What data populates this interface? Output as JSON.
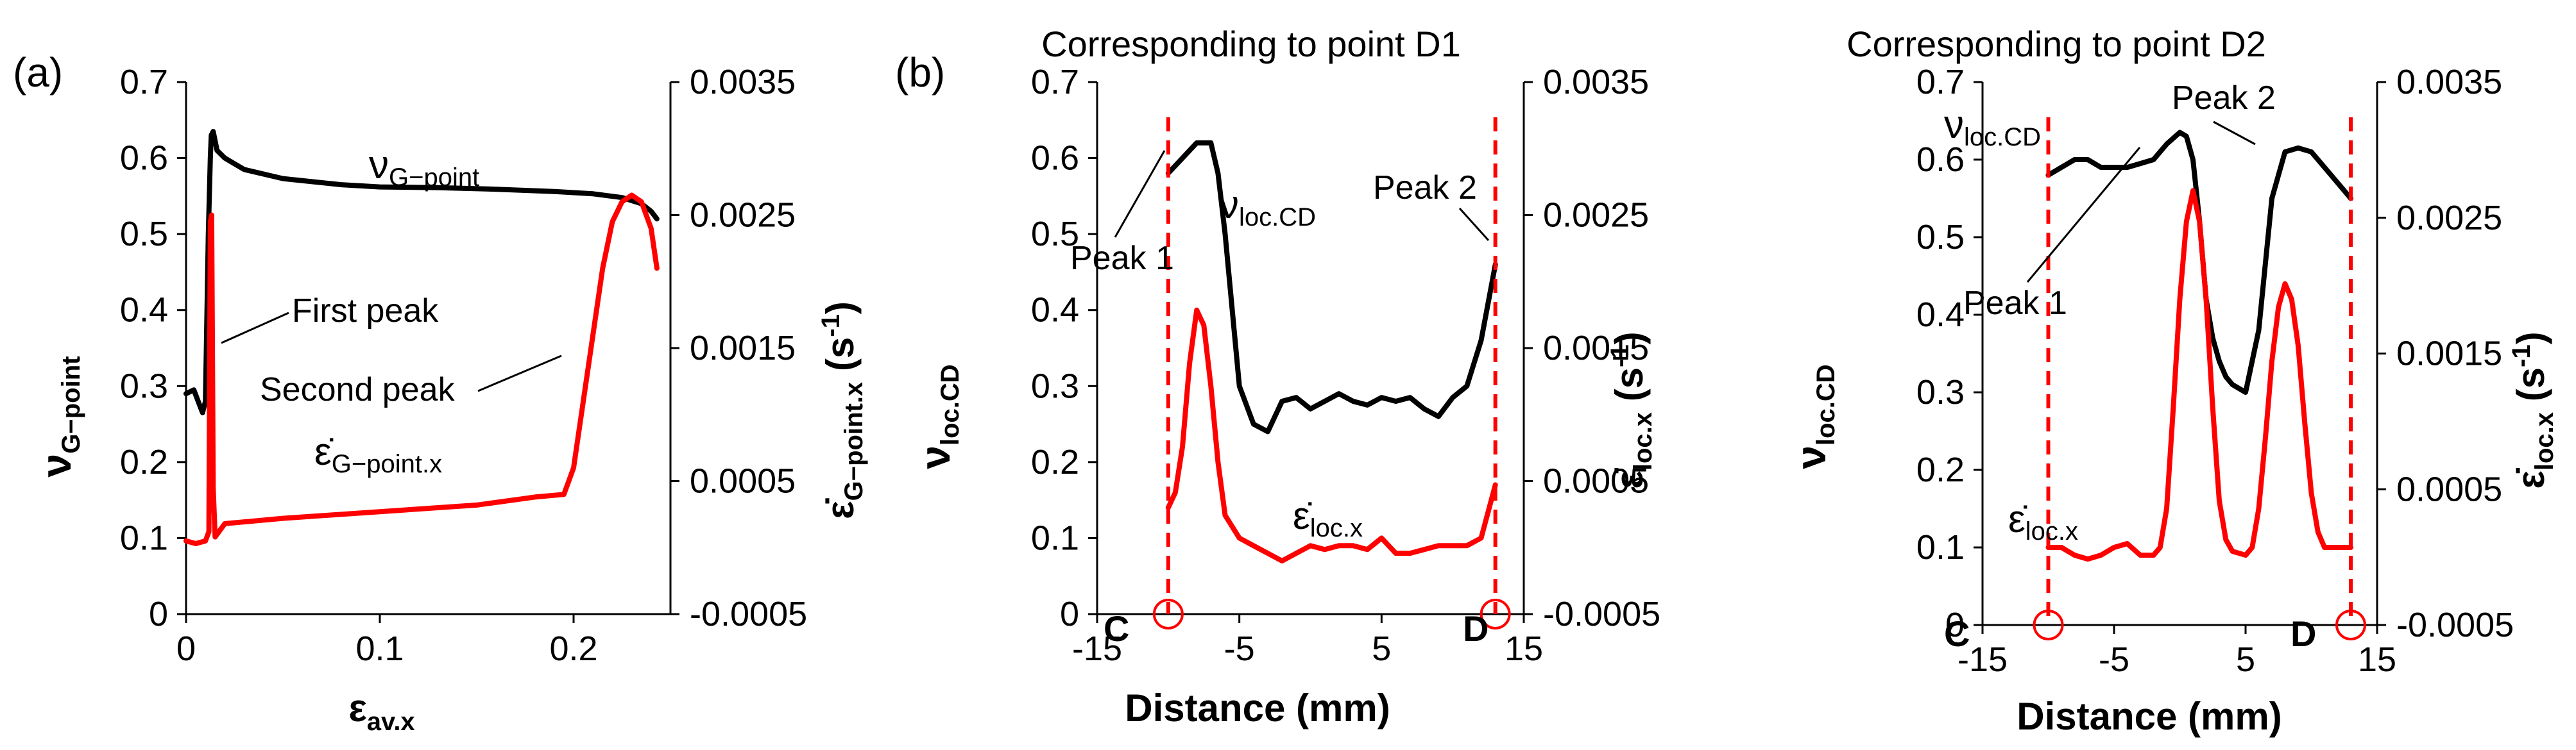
{
  "figure_labels": {
    "a": "(a)",
    "b": "(b)"
  },
  "subscripts": {
    "g_point": "G−point",
    "g_point_x": "G−point.x",
    "av_x": "av.x",
    "loc_cd": "loc.CD",
    "loc_x": "loc.x",
    "minus1": "-1"
  },
  "symbols": {
    "nu": "ν",
    "eps_dot": "ε̇",
    "eps": "ε",
    "unit_open": " (s",
    "unit_close": ")"
  },
  "chart_data": [
    {
      "type": "line",
      "id": "a",
      "title": "",
      "xlabel": "ε_av.x",
      "ylabel": "ν_G−point",
      "y2label": "ε̇_G−point.x (s-1)",
      "xlim": [
        0,
        0.25
      ],
      "ylim": [
        0,
        0.7
      ],
      "y2lim": [
        -0.0005,
        0.0035
      ],
      "xticks": [
        "0",
        "0.1",
        "0.2"
      ],
      "xtick_values": [
        0,
        0.1,
        0.2
      ],
      "yticks": [
        "0",
        "0.1",
        "0.2",
        "0.3",
        "0.4",
        "0.5",
        "0.6",
        "0.7"
      ],
      "y2ticks": [
        "-0.0005",
        "0.0005",
        "0.0015",
        "0.0025",
        "0.0035"
      ],
      "series": [
        {
          "name": "ν_G−point",
          "axis": "left",
          "color": "#000000",
          "x": [
            0,
            0.004,
            0.007,
            0.0085,
            0.01,
            0.0115,
            0.0125,
            0.013,
            0.014,
            0.016,
            0.02,
            0.03,
            0.05,
            0.08,
            0.1,
            0.13,
            0.16,
            0.19,
            0.21,
            0.225,
            0.235,
            0.24,
            0.243
          ],
          "y": [
            0.29,
            0.295,
            0.275,
            0.265,
            0.28,
            0.5,
            0.6,
            0.63,
            0.635,
            0.61,
            0.6,
            0.585,
            0.573,
            0.565,
            0.562,
            0.561,
            0.559,
            0.556,
            0.553,
            0.548,
            0.54,
            0.53,
            0.52
          ]
        },
        {
          "name": "ε̇_G−point.x",
          "axis": "right",
          "color": "#ff0000",
          "x": [
            0,
            0.005,
            0.01,
            0.0118,
            0.0125,
            0.0132,
            0.014,
            0.015,
            0.02,
            0.05,
            0.1,
            0.15,
            0.18,
            0.195,
            0.2,
            0.205,
            0.21,
            0.215,
            0.22,
            0.225,
            0.23,
            0.235,
            0.24,
            0.243
          ],
          "y": [
            5e-05,
            3e-05,
            5e-05,
            0.00012,
            0.00245,
            0.0025,
            0.00045,
            8e-05,
            0.00018,
            0.00022,
            0.00027,
            0.00032,
            0.00038,
            0.0004,
            0.0006,
            0.0011,
            0.0016,
            0.0021,
            0.00245,
            0.0026,
            0.00265,
            0.0026,
            0.0024,
            0.0021
          ]
        }
      ],
      "annotations": [
        "First peak",
        "Second peak"
      ]
    },
    {
      "type": "line",
      "id": "b1",
      "title": "Corresponding to point D1",
      "xlabel": "Distance (mm)",
      "ylabel": "ν_loc.CD",
      "y2label": "ε̇_loc.x (s-1)",
      "xlim": [
        -15,
        15
      ],
      "ylim": [
        0,
        0.7
      ],
      "y2lim": [
        -0.0005,
        0.0035
      ],
      "xticks": [
        "-15",
        "-5",
        "5",
        "15"
      ],
      "xtick_values": [
        -15,
        -5,
        5,
        15
      ],
      "yticks": [
        "0",
        "0.1",
        "0.2",
        "0.3",
        "0.4",
        "0.5",
        "0.6",
        "0.7"
      ],
      "y2ticks": [
        "-0.0005",
        "0.0005",
        "0.0015",
        "0.0025",
        "0.0035"
      ],
      "series": [
        {
          "name": "ν_loc.CD",
          "axis": "left",
          "color": "#000000",
          "x": [
            -10,
            -9,
            -8,
            -7,
            -6.5,
            -6,
            -5.5,
            -5,
            -4,
            -3,
            -2,
            -1,
            0,
            1,
            2,
            3,
            4,
            5,
            6,
            7,
            8,
            9,
            10,
            11,
            12,
            13
          ],
          "y": [
            0.58,
            0.6,
            0.62,
            0.62,
            0.58,
            0.5,
            0.4,
            0.3,
            0.25,
            0.24,
            0.28,
            0.285,
            0.27,
            0.28,
            0.29,
            0.28,
            0.275,
            0.285,
            0.28,
            0.285,
            0.27,
            0.26,
            0.285,
            0.3,
            0.36,
            0.46
          ]
        },
        {
          "name": "ε̇_loc.x",
          "axis": "right",
          "color": "#ff0000",
          "x": [
            -10,
            -9.5,
            -9,
            -8.5,
            -8,
            -7.5,
            -7,
            -6.5,
            -6,
            -5,
            -4,
            -3,
            -2,
            -1,
            0,
            1,
            2,
            3,
            4,
            5,
            6,
            7,
            8,
            9,
            10,
            11,
            12,
            13
          ],
          "y": [
            0.14,
            0.16,
            0.22,
            0.33,
            0.4,
            0.38,
            0.3,
            0.2,
            0.13,
            0.1,
            0.09,
            0.08,
            0.07,
            0.08,
            0.09,
            0.085,
            0.09,
            0.09,
            0.085,
            0.1,
            0.08,
            0.08,
            0.085,
            0.09,
            0.09,
            0.09,
            0.1,
            0.17
          ],
          "y_in_left_units": true
        }
      ],
      "annotations": [
        "Peak 1",
        "Peak 2",
        "C",
        "D"
      ],
      "markers": {
        "C": -10,
        "D": 13
      }
    },
    {
      "type": "line",
      "id": "b2",
      "title": "Corresponding to point D2",
      "xlabel": "Distance (mm)",
      "ylabel": "ν_loc.CD",
      "y2label": "ε̇_loc.x (s-1)",
      "xlim": [
        -15,
        15
      ],
      "ylim": [
        0,
        0.7
      ],
      "y2lim": [
        -0.0005,
        0.0035
      ],
      "xticks": [
        "-15",
        "-5",
        "5",
        "15"
      ],
      "xtick_values": [
        -15,
        -5,
        5,
        15
      ],
      "yticks": [
        "0",
        "0.1",
        "0.2",
        "0.3",
        "0.4",
        "0.5",
        "0.6",
        "0.7"
      ],
      "y2ticks": [
        "-0.0005",
        "0.0005",
        "0.0015",
        "0.0025",
        "0.0035"
      ],
      "series": [
        {
          "name": "ν_loc.CD",
          "axis": "left",
          "color": "#000000",
          "x": [
            -10,
            -9,
            -8,
            -7,
            -6,
            -5,
            -4,
            -3,
            -2,
            -1,
            0,
            0.5,
            1,
            1.5,
            2,
            2.5,
            3,
            3.5,
            4,
            5,
            6,
            7,
            8,
            9,
            10,
            11,
            12,
            13
          ],
          "y": [
            0.58,
            0.59,
            0.6,
            0.6,
            0.59,
            0.59,
            0.59,
            0.595,
            0.6,
            0.62,
            0.635,
            0.63,
            0.6,
            0.52,
            0.42,
            0.37,
            0.34,
            0.32,
            0.31,
            0.3,
            0.38,
            0.55,
            0.61,
            0.615,
            0.61,
            0.59,
            0.57,
            0.55
          ]
        },
        {
          "name": "ε̇_loc.x",
          "axis": "right",
          "color": "#ff0000",
          "x": [
            -10,
            -9,
            -8,
            -7,
            -6,
            -5,
            -4,
            -3,
            -2,
            -1.5,
            -1,
            -0.5,
            0,
            0.5,
            1,
            1.5,
            2,
            2.5,
            3,
            3.5,
            4,
            5,
            5.5,
            6,
            6.5,
            7,
            7.5,
            8,
            8.5,
            9,
            9.5,
            10,
            10.5,
            11,
            12,
            13
          ],
          "y": [
            0.1,
            0.1,
            0.09,
            0.085,
            0.09,
            0.1,
            0.105,
            0.09,
            0.09,
            0.1,
            0.15,
            0.28,
            0.42,
            0.52,
            0.56,
            0.52,
            0.42,
            0.28,
            0.16,
            0.11,
            0.095,
            0.09,
            0.1,
            0.15,
            0.24,
            0.34,
            0.41,
            0.44,
            0.42,
            0.36,
            0.26,
            0.17,
            0.12,
            0.1,
            0.1,
            0.1
          ],
          "y_in_left_units": true
        }
      ],
      "annotations": [
        "Peak 1",
        "Peak 2",
        "C",
        "D"
      ],
      "markers": {
        "C": -10,
        "D": 13
      }
    }
  ],
  "panel_texts": {
    "a": {
      "first_peak": "First peak",
      "second_peak": "Second peak"
    },
    "b1": {
      "title": "Corresponding to point D1",
      "peak1": "Peak 1",
      "peak2": "Peak 2",
      "c": "C",
      "d": "D",
      "xlabel": "Distance (mm)"
    },
    "b2": {
      "title": "Corresponding to point D2",
      "peak1": "Peak 1",
      "peak2": "Peak 2",
      "c": "C",
      "d": "D",
      "xlabel": "Distance (mm)"
    }
  },
  "colors": {
    "black_series": "#000000",
    "red_series": "#ff0000",
    "marker": "#ff0000"
  }
}
